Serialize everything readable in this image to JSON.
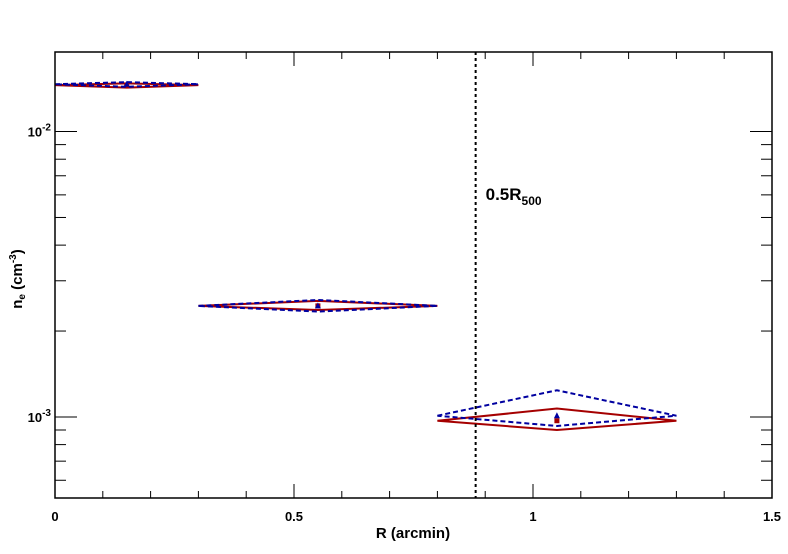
{
  "chart_data": {
    "type": "scatter",
    "x_axis": {
      "label": "R (arcmin)",
      "range": [
        0,
        1.5
      ],
      "major_ticks": [
        0,
        0.5,
        1,
        1.5
      ],
      "tick_labels": [
        "0",
        "0.5",
        "1",
        "1.5"
      ]
    },
    "y_axis": {
      "label_main": "n",
      "label_sub": "e",
      "label_unit_pre": " (cm",
      "label_unit_sup": "-3",
      "label_unit_post": ")",
      "scale": "log",
      "range": [
        0.00052,
        0.019
      ],
      "major_ticks": [
        0.001,
        0.01
      ],
      "tick_labels": [
        {
          "base": "10",
          "exp": "-3"
        },
        {
          "base": "10",
          "exp": "-2"
        }
      ]
    },
    "reference_line": {
      "x": 0.88,
      "label_main": "0.5R",
      "label_sub": "500",
      "style": "dotted",
      "color": "#000000"
    },
    "series": [
      {
        "style": "solid",
        "marker": "square",
        "color": "#a50000",
        "points": [
          {
            "x": 0.15,
            "xerr": 0.15,
            "y": 0.01455,
            "ylo": 0.01425,
            "yhi": 0.01475
          },
          {
            "x": 0.55,
            "xerr": 0.25,
            "y": 0.00245,
            "ylo": 0.00237,
            "yhi": 0.00255
          },
          {
            "x": 1.05,
            "xerr": 0.25,
            "y": 0.00097,
            "ylo": 0.0009,
            "yhi": 0.00107
          }
        ]
      },
      {
        "style": "dashed",
        "marker": "triangle",
        "color": "#0000a0",
        "points": [
          {
            "x": 0.15,
            "xerr": 0.15,
            "y": 0.01465,
            "ylo": 0.01435,
            "yhi": 0.0149
          },
          {
            "x": 0.55,
            "xerr": 0.25,
            "y": 0.00245,
            "ylo": 0.00234,
            "yhi": 0.00257
          },
          {
            "x": 1.05,
            "xerr": 0.25,
            "y": 0.00101,
            "ylo": 0.00093,
            "yhi": 0.00124
          }
        ]
      }
    ]
  }
}
